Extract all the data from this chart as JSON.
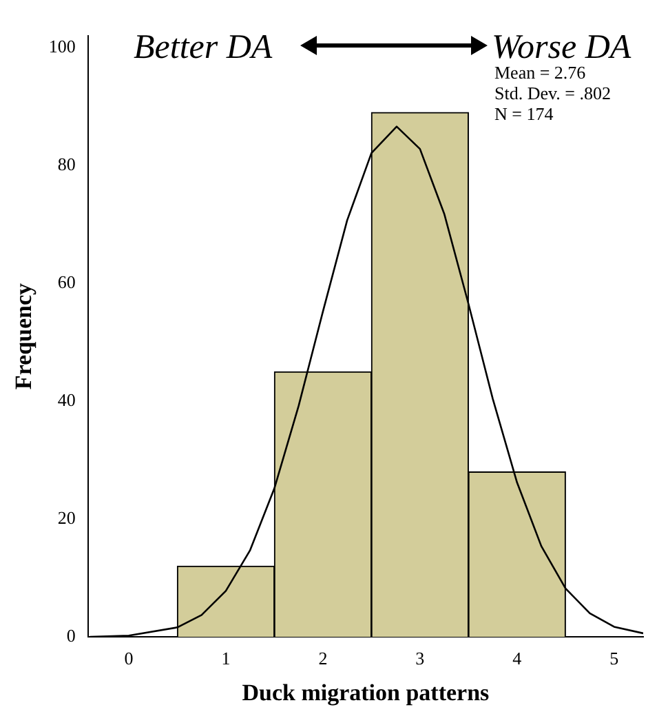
{
  "chart_data": {
    "type": "histogram",
    "xlabel": "Duck migration patterns",
    "ylabel": "Frequency",
    "bins": [
      0.5,
      1.5,
      2.5,
      3.5,
      4.5
    ],
    "values": [
      12,
      45,
      89,
      28
    ],
    "color": "#d3cd9a",
    "series": [
      {
        "type": "line",
        "color": "#000000",
        "x": [
          -0.4,
          0,
          0.5,
          0.75,
          1,
          1.25,
          1.5,
          1.75,
          2,
          2.25,
          2.5,
          2.76,
          3,
          3.25,
          3.5,
          3.75,
          4,
          4.25,
          4.5,
          4.75,
          5,
          5.3
        ],
        "values": [
          0,
          0.2,
          1.6,
          3.7,
          7.8,
          14.7,
          25.2,
          39.2,
          55.2,
          70.7,
          82.1,
          86.6,
          82.8,
          71.8,
          56.5,
          40.4,
          26.2,
          15.4,
          8.2,
          4,
          1.7,
          0.6
        ]
      }
    ],
    "marker": "none",
    "line_style": "solid",
    "xlim": [
      -0.42,
      5.3
    ],
    "xticks": [
      0,
      1,
      2,
      3,
      4,
      5
    ],
    "ylim": [
      0,
      102
    ],
    "yticks": [
      0,
      20,
      40,
      60,
      80,
      100
    ],
    "grid": false,
    "legend": false,
    "annotations": [
      "Better DA",
      "Worse DA",
      "Mean = 2.76",
      "Std. Dev. = .802",
      "N = 174"
    ]
  }
}
